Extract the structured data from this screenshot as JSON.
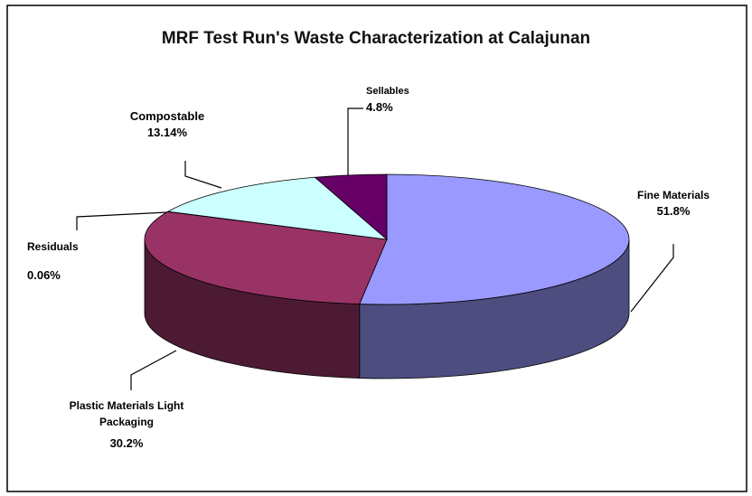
{
  "chart_data": {
    "type": "pie3d",
    "title": "MRF Test Run's Waste Characterization at Calajunan",
    "categories": [
      "Fine Materials",
      "Plastic Materials Light Packaging",
      "Residuals",
      "Compostable",
      "Sellables"
    ],
    "values": [
      51.8,
      30.2,
      0.06,
      13.14,
      4.8
    ],
    "value_labels": [
      "51.8%",
      "30.2%",
      "0.06%",
      "13.14%",
      "4.8%"
    ],
    "colors": [
      "#9999ff",
      "#993366",
      "#ffffcc",
      "#ccffff",
      "#660066"
    ]
  }
}
